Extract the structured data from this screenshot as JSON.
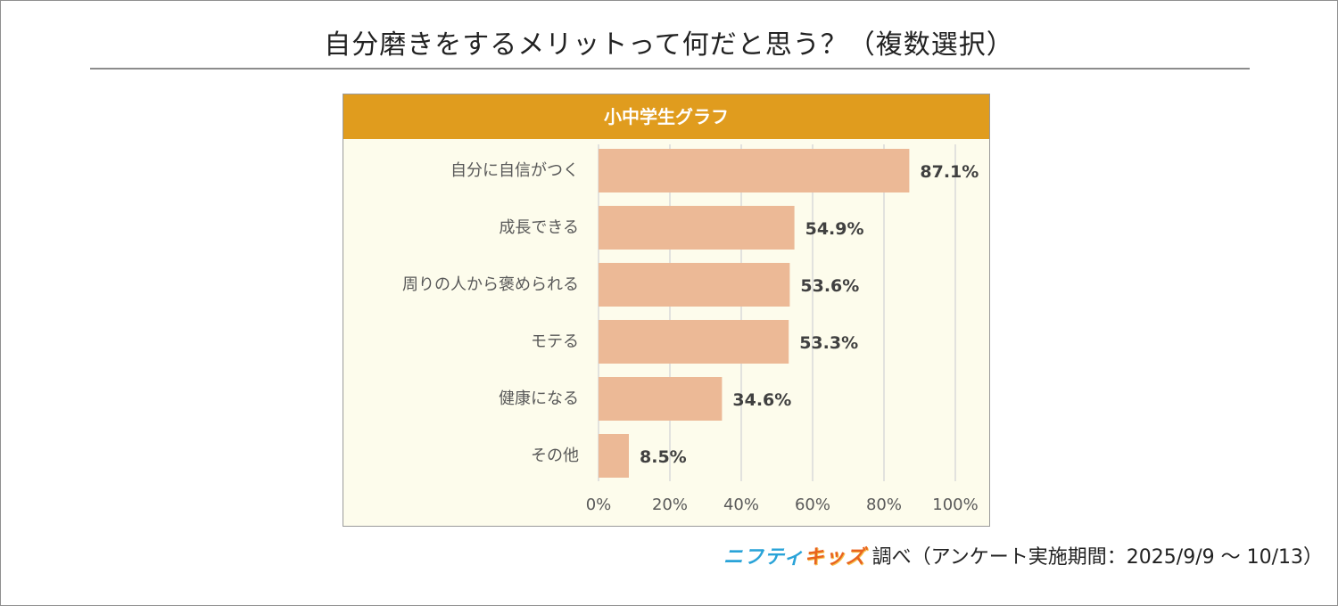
{
  "title": "自分磨きをするメリットって何だと思う？（複数選択）",
  "footer": {
    "brand_part1": "ニフティ",
    "brand_part2": "キッズ",
    "text": "調べ（アンケート実施期間：2025/9/9 ～ 10/13）"
  },
  "colors": {
    "header_bg": "#e09c1e",
    "plot_bg": "#fdfcec",
    "bar": "#ecb996",
    "grid": "#d9d9d9"
  },
  "chart_data": {
    "type": "bar",
    "orientation": "horizontal",
    "title": "小中学生グラフ",
    "categories": [
      "自分に自信がつく",
      "成長できる",
      "周りの人から褒められる",
      "モテる",
      "健康になる",
      "その他"
    ],
    "values": [
      87.1,
      54.9,
      53.6,
      53.3,
      34.6,
      8.5
    ],
    "value_labels": [
      "87.1%",
      "54.9%",
      "53.6%",
      "53.3%",
      "34.6%",
      "8.5%"
    ],
    "xlim": [
      0,
      100
    ],
    "xticks": [
      0,
      20,
      40,
      60,
      80,
      100
    ],
    "xtick_labels": [
      "0%",
      "20%",
      "40%",
      "60%",
      "80%",
      "100%"
    ],
    "grid": true
  }
}
